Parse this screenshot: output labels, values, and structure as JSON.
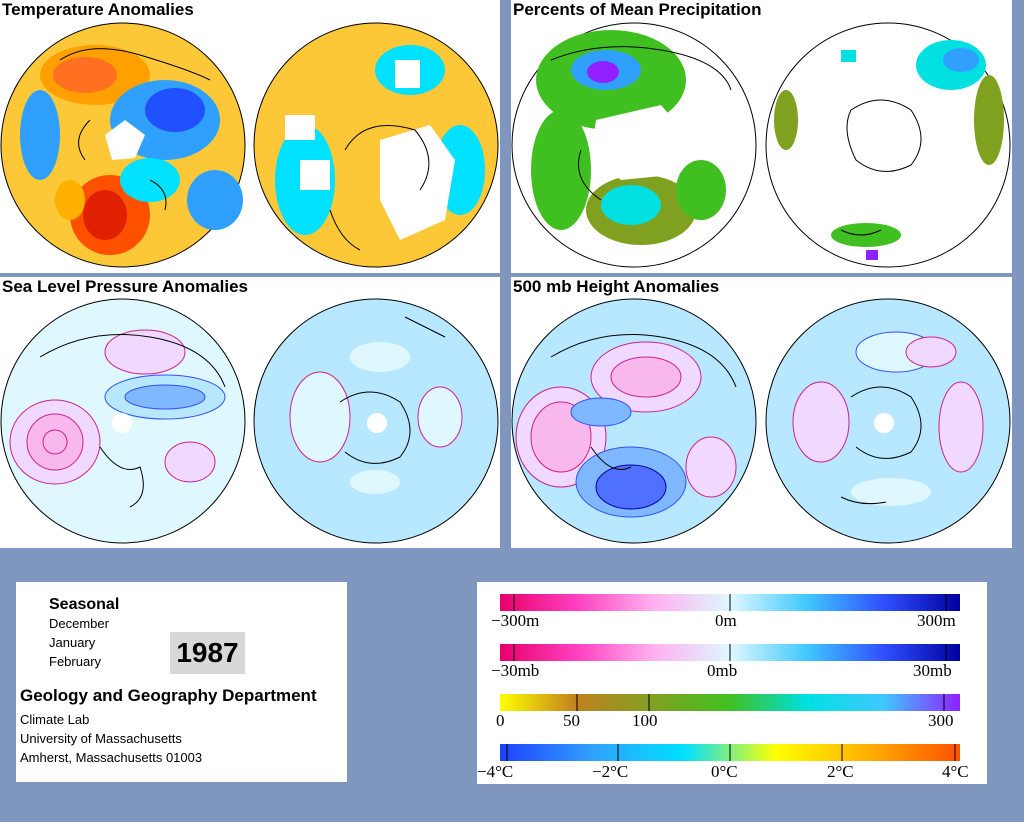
{
  "panels": {
    "temperature": {
      "title": "Temperature Anomalies"
    },
    "precipitation": {
      "title": "Percents of Mean Precipitation"
    },
    "slp": {
      "title": "Sea Level Pressure Anomalies"
    },
    "height500": {
      "title": "500 mb Height Anomalies"
    }
  },
  "info": {
    "heading": "Seasonal",
    "months": [
      "December",
      "January",
      "February"
    ],
    "year": "1987",
    "department": "Geology and Geography Department",
    "lines": [
      "Climate Lab",
      "University of Massachusetts",
      "Amherst, Massachusetts 01003"
    ]
  },
  "legend": {
    "height": {
      "left": "−300m",
      "mid": "0m",
      "right": "300m"
    },
    "pressure": {
      "left": "−30mb",
      "mid": "0mb",
      "right": "30mb"
    },
    "precip": {
      "l0": "0",
      "l50": "50",
      "l100": "100",
      "l300": "300"
    },
    "temp": {
      "l1": "−4°C",
      "l2": "−2°C",
      "l3": "0°C",
      "l4": "2°C",
      "l5": "4°C"
    },
    "colors": {
      "height": [
        "#e8006a",
        "#ff40c0",
        "#ffb0f0",
        "#dff8ff",
        "#40c8ff",
        "#3050ff",
        "#0000a0"
      ],
      "pressure": [
        "#e8006a",
        "#ff40c0",
        "#ffb0f0",
        "#dff8ff",
        "#40c8ff",
        "#3050ff",
        "#0000a0"
      ],
      "precip": [
        "#ffff00",
        "#c08020",
        "#80a020",
        "#40c020",
        "#00e0e0",
        "#40c8ff",
        "#9020ff"
      ],
      "temp": [
        "#2040ff",
        "#30a0ff",
        "#00e0ff",
        "#ffff00",
        "#ffb000",
        "#ff5000"
      ]
    }
  }
}
